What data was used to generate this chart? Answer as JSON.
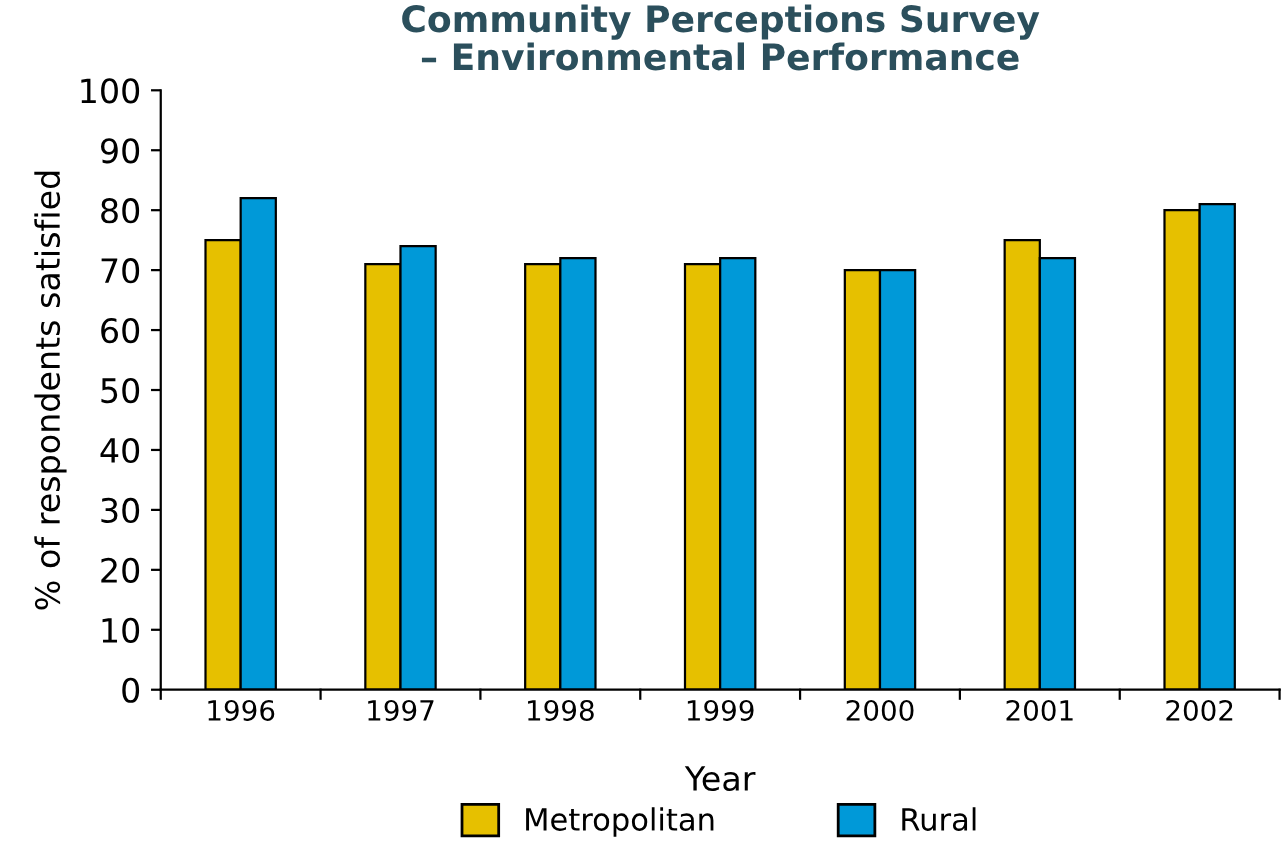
{
  "chart_data": {
    "type": "bar",
    "title": "Community Perceptions Survey\n– Environmental Performance",
    "xlabel": "Year",
    "ylabel": "% of respondents satisfied",
    "categories": [
      "1996",
      "1997",
      "1998",
      "1999",
      "2000",
      "2001",
      "2002"
    ],
    "series": [
      {
        "name": "Metropolitan",
        "color": "#e6c000",
        "values": [
          75,
          71,
          71,
          71,
          70,
          75,
          80
        ]
      },
      {
        "name": "Rural",
        "color": "#0099d8",
        "values": [
          82,
          74,
          72,
          72,
          70,
          72,
          81
        ]
      }
    ],
    "ylim": [
      0,
      100
    ],
    "yticks": [
      0,
      10,
      20,
      30,
      40,
      50,
      60,
      70,
      80,
      90,
      100
    ],
    "grid": false,
    "legend": "bottom"
  }
}
